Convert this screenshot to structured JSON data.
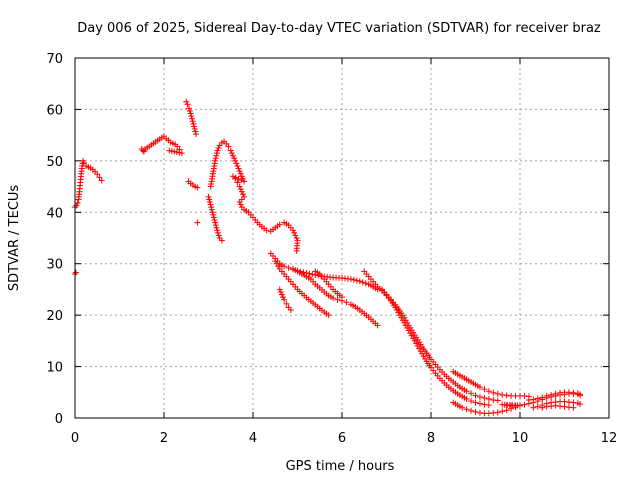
{
  "colors": {
    "background": "#ffffff",
    "marker": "#ff0000",
    "grid": "#a0a0a0",
    "axis": "#000000"
  },
  "chart_data": {
    "type": "scatter",
    "title": "Day 006 of 2025, Sidereal Day-to-day VTEC variation (SDTVAR) for receiver braz",
    "xlabel": "GPS time / hours",
    "ylabel": "SDTVAR / TECUs",
    "xlim": [
      0,
      12
    ],
    "ylim": [
      0,
      70
    ],
    "xticks": [
      0,
      2,
      4,
      6,
      8,
      10,
      12
    ],
    "yticks": [
      0,
      10,
      20,
      30,
      40,
      50,
      60,
      70
    ],
    "grid": true,
    "marker": "+",
    "series": [
      {
        "name": "SDTVAR",
        "points": [
          [
            0.0,
            28.0
          ],
          [
            0.02,
            28.3
          ],
          [
            0.0,
            41.0
          ],
          [
            0.03,
            41.3
          ],
          [
            0.06,
            41.8
          ],
          [
            0.08,
            42.5
          ],
          [
            0.1,
            44.0
          ],
          [
            0.12,
            45.8
          ],
          [
            0.14,
            47.5
          ],
          [
            0.16,
            49.0
          ],
          [
            0.18,
            50.0
          ],
          [
            0.2,
            49.6
          ],
          [
            0.25,
            49.0
          ],
          [
            0.3,
            48.8
          ],
          [
            0.35,
            48.6
          ],
          [
            0.4,
            48.3
          ],
          [
            0.45,
            47.9
          ],
          [
            0.5,
            47.4
          ],
          [
            0.55,
            46.8
          ],
          [
            0.6,
            46.2
          ],
          [
            1.5,
            52.3
          ],
          [
            1.55,
            51.8
          ],
          [
            1.53,
            52.0
          ],
          [
            1.95,
            54.5
          ],
          [
            2.0,
            54.8
          ],
          [
            2.05,
            54.3
          ],
          [
            2.1,
            54.0
          ],
          [
            2.15,
            53.6
          ],
          [
            2.2,
            53.4
          ],
          [
            2.25,
            53.2
          ],
          [
            2.3,
            52.8
          ],
          [
            2.35,
            52.2
          ],
          [
            2.4,
            51.5
          ],
          [
            2.12,
            52.0
          ],
          [
            2.5,
            61.5
          ],
          [
            2.53,
            61.0
          ],
          [
            2.56,
            60.2
          ],
          [
            2.6,
            59.2
          ],
          [
            2.63,
            58.2
          ],
          [
            2.66,
            57.2
          ],
          [
            2.69,
            56.2
          ],
          [
            2.72,
            55.2
          ],
          [
            2.55,
            46.0
          ],
          [
            2.6,
            45.6
          ],
          [
            2.65,
            45.3
          ],
          [
            2.7,
            45.0
          ],
          [
            2.75,
            44.8
          ],
          [
            2.75,
            38.0
          ],
          [
            3.0,
            43.0
          ],
          [
            3.03,
            42.0
          ],
          [
            3.06,
            41.0
          ],
          [
            3.09,
            40.0
          ],
          [
            3.12,
            39.0
          ],
          [
            3.15,
            38.0
          ],
          [
            3.18,
            37.0
          ],
          [
            3.21,
            36.0
          ],
          [
            3.25,
            35.0
          ],
          [
            3.3,
            34.5
          ],
          [
            3.05,
            45.0
          ],
          [
            3.1,
            47.5
          ],
          [
            3.15,
            50.0
          ],
          [
            3.2,
            52.0
          ],
          [
            3.25,
            53.0
          ],
          [
            3.3,
            53.5
          ],
          [
            3.35,
            53.8
          ],
          [
            3.4,
            53.3
          ],
          [
            3.45,
            52.8
          ],
          [
            3.5,
            52.0
          ],
          [
            3.55,
            51.0
          ],
          [
            3.6,
            50.0
          ],
          [
            3.65,
            49.0
          ],
          [
            3.7,
            48.0
          ],
          [
            3.75,
            47.0
          ],
          [
            3.8,
            46.0
          ],
          [
            3.55,
            47.0
          ],
          [
            3.6,
            46.5
          ],
          [
            3.65,
            45.8
          ],
          [
            3.7,
            45.0
          ],
          [
            3.75,
            44.0
          ],
          [
            3.8,
            43.0
          ],
          [
            3.7,
            42.0
          ],
          [
            3.75,
            41.0
          ],
          [
            3.8,
            40.5
          ],
          [
            3.9,
            40.0
          ],
          [
            4.0,
            39.0
          ],
          [
            4.1,
            38.0
          ],
          [
            4.2,
            37.2
          ],
          [
            4.3,
            36.5
          ],
          [
            4.4,
            36.3
          ],
          [
            4.5,
            37.0
          ],
          [
            4.6,
            37.6
          ],
          [
            4.7,
            38.0
          ],
          [
            4.8,
            37.5
          ],
          [
            4.9,
            36.5
          ],
          [
            4.95,
            35.5
          ],
          [
            5.0,
            34.5
          ],
          [
            4.98,
            32.5
          ],
          [
            4.4,
            32.0
          ],
          [
            4.5,
            31.0
          ],
          [
            4.6,
            30.0
          ],
          [
            4.7,
            29.5
          ],
          [
            4.8,
            29.2
          ],
          [
            4.9,
            28.9
          ],
          [
            5.0,
            28.6
          ],
          [
            5.2,
            28.2
          ],
          [
            5.4,
            27.8
          ],
          [
            5.6,
            27.5
          ],
          [
            5.8,
            27.3
          ],
          [
            6.0,
            27.2
          ],
          [
            6.2,
            27.0
          ],
          [
            6.4,
            26.6
          ],
          [
            6.6,
            26.0
          ],
          [
            6.8,
            25.0
          ],
          [
            4.5,
            30.5
          ],
          [
            4.6,
            29.0
          ],
          [
            4.7,
            28.0
          ],
          [
            4.8,
            27.0
          ],
          [
            4.9,
            26.0
          ],
          [
            5.0,
            25.0
          ],
          [
            5.1,
            24.2
          ],
          [
            5.2,
            23.4
          ],
          [
            5.3,
            22.7
          ],
          [
            5.4,
            22.0
          ],
          [
            5.5,
            21.3
          ],
          [
            5.6,
            20.6
          ],
          [
            5.7,
            20.0
          ],
          [
            4.9,
            29.0
          ],
          [
            5.0,
            28.5
          ],
          [
            5.1,
            28.0
          ],
          [
            5.2,
            27.5
          ],
          [
            5.3,
            27.0
          ],
          [
            5.4,
            26.0
          ],
          [
            5.5,
            25.3
          ],
          [
            5.6,
            24.5
          ],
          [
            5.7,
            23.8
          ],
          [
            5.8,
            23.3
          ],
          [
            5.9,
            23.0
          ],
          [
            6.0,
            22.8
          ],
          [
            6.1,
            22.5
          ],
          [
            6.2,
            22.1
          ],
          [
            6.3,
            21.6
          ],
          [
            6.4,
            21.0
          ],
          [
            6.5,
            20.3
          ],
          [
            6.6,
            19.6
          ],
          [
            6.7,
            18.8
          ],
          [
            6.8,
            18.0
          ],
          [
            5.4,
            28.5
          ],
          [
            5.5,
            28.0
          ],
          [
            5.6,
            27.0
          ],
          [
            5.7,
            26.0
          ],
          [
            5.8,
            25.0
          ],
          [
            5.9,
            24.2
          ],
          [
            6.0,
            23.5
          ],
          [
            4.6,
            25.0
          ],
          [
            4.65,
            24.0
          ],
          [
            4.7,
            23.0
          ],
          [
            4.75,
            22.2
          ],
          [
            4.8,
            21.5
          ],
          [
            4.85,
            21.0
          ],
          [
            6.5,
            28.5
          ],
          [
            6.6,
            27.5
          ],
          [
            6.7,
            26.5
          ],
          [
            6.8,
            25.5
          ],
          [
            6.9,
            24.8
          ],
          [
            7.0,
            23.8
          ],
          [
            7.1,
            22.8
          ],
          [
            7.2,
            21.5
          ],
          [
            7.3,
            20.0
          ],
          [
            7.4,
            18.5
          ],
          [
            7.5,
            17.0
          ],
          [
            7.6,
            15.5
          ],
          [
            7.7,
            14.0
          ],
          [
            7.8,
            12.5
          ],
          [
            7.9,
            11.0
          ],
          [
            8.0,
            9.8
          ],
          [
            8.1,
            8.7
          ],
          [
            8.2,
            7.7
          ],
          [
            8.3,
            6.8
          ],
          [
            8.4,
            6.0
          ],
          [
            8.5,
            5.3
          ],
          [
            8.6,
            4.7
          ],
          [
            8.7,
            4.2
          ],
          [
            8.8,
            3.7
          ],
          [
            8.9,
            3.3
          ],
          [
            9.0,
            3.0
          ],
          [
            9.1,
            2.8
          ],
          [
            9.2,
            2.6
          ],
          [
            9.3,
            2.5
          ],
          [
            6.9,
            25.0
          ],
          [
            7.0,
            24.0
          ],
          [
            7.1,
            23.0
          ],
          [
            7.2,
            22.0
          ],
          [
            7.3,
            20.8
          ],
          [
            7.4,
            19.5
          ],
          [
            7.5,
            18.0
          ],
          [
            7.6,
            16.6
          ],
          [
            7.7,
            15.2
          ],
          [
            7.8,
            13.8
          ],
          [
            7.9,
            12.6
          ],
          [
            8.0,
            11.4
          ],
          [
            8.1,
            10.4
          ],
          [
            8.2,
            9.4
          ],
          [
            8.3,
            8.5
          ],
          [
            8.4,
            7.7
          ],
          [
            8.5,
            7.0
          ],
          [
            8.6,
            6.3
          ],
          [
            8.7,
            5.7
          ],
          [
            8.8,
            5.2
          ],
          [
            8.9,
            4.8
          ],
          [
            9.0,
            4.4
          ],
          [
            9.1,
            4.1
          ],
          [
            9.2,
            3.9
          ],
          [
            9.3,
            3.7
          ],
          [
            9.4,
            3.5
          ],
          [
            9.5,
            3.4
          ],
          [
            8.5,
            9.0
          ],
          [
            8.6,
            8.5
          ],
          [
            8.7,
            8.0
          ],
          [
            8.8,
            7.5
          ],
          [
            8.9,
            7.0
          ],
          [
            9.0,
            6.5
          ],
          [
            9.1,
            6.0
          ],
          [
            9.2,
            5.6
          ],
          [
            9.3,
            5.2
          ],
          [
            9.4,
            4.9
          ],
          [
            9.5,
            4.7
          ],
          [
            9.6,
            4.5
          ],
          [
            9.7,
            4.4
          ],
          [
            9.8,
            4.3
          ],
          [
            9.9,
            4.3
          ],
          [
            10.0,
            4.3
          ],
          [
            10.1,
            4.3
          ],
          [
            10.2,
            4.2
          ],
          [
            8.5,
            3.0
          ],
          [
            8.6,
            2.5
          ],
          [
            8.7,
            2.0
          ],
          [
            8.8,
            1.7
          ],
          [
            8.9,
            1.4
          ],
          [
            9.0,
            1.2
          ],
          [
            9.1,
            1.0
          ],
          [
            9.2,
            0.9
          ],
          [
            9.3,
            0.9
          ],
          [
            9.4,
            1.0
          ],
          [
            9.5,
            1.1
          ],
          [
            9.6,
            1.3
          ],
          [
            9.7,
            1.5
          ],
          [
            9.8,
            1.8
          ],
          [
            9.9,
            2.1
          ],
          [
            10.0,
            2.4
          ],
          [
            9.6,
            2.6
          ],
          [
            9.7,
            2.5
          ],
          [
            9.8,
            2.4
          ],
          [
            9.9,
            2.4
          ],
          [
            10.0,
            2.5
          ],
          [
            10.1,
            2.6
          ],
          [
            10.2,
            2.8
          ],
          [
            10.3,
            3.0
          ],
          [
            10.4,
            3.3
          ],
          [
            10.5,
            3.6
          ],
          [
            10.6,
            3.9
          ],
          [
            10.7,
            4.1
          ],
          [
            10.8,
            4.3
          ],
          [
            10.9,
            4.5
          ],
          [
            11.0,
            4.6
          ],
          [
            11.1,
            4.7
          ],
          [
            11.2,
            4.7
          ],
          [
            11.3,
            4.6
          ],
          [
            11.35,
            4.4
          ],
          [
            10.2,
            3.5
          ],
          [
            10.3,
            3.6
          ],
          [
            10.4,
            3.8
          ],
          [
            10.5,
            4.0
          ],
          [
            10.6,
            4.3
          ],
          [
            10.7,
            4.5
          ],
          [
            10.8,
            4.7
          ],
          [
            10.9,
            4.9
          ],
          [
            11.0,
            5.0
          ],
          [
            11.1,
            5.0
          ],
          [
            11.2,
            4.9
          ],
          [
            11.3,
            4.8
          ],
          [
            11.35,
            4.6
          ],
          [
            10.3,
            2.0
          ],
          [
            10.4,
            2.2
          ],
          [
            10.5,
            2.5
          ],
          [
            10.6,
            2.8
          ],
          [
            10.7,
            3.0
          ],
          [
            10.8,
            3.1
          ],
          [
            10.9,
            3.2
          ],
          [
            11.0,
            3.2
          ],
          [
            11.1,
            3.1
          ],
          [
            11.2,
            3.0
          ],
          [
            11.3,
            2.9
          ],
          [
            11.35,
            2.7
          ],
          [
            10.5,
            2.0
          ],
          [
            10.6,
            2.2
          ],
          [
            10.7,
            2.3
          ],
          [
            10.8,
            2.4
          ],
          [
            10.9,
            2.3
          ],
          [
            11.0,
            2.2
          ],
          [
            11.1,
            2.1
          ],
          [
            11.2,
            2.0
          ]
        ]
      }
    ]
  }
}
